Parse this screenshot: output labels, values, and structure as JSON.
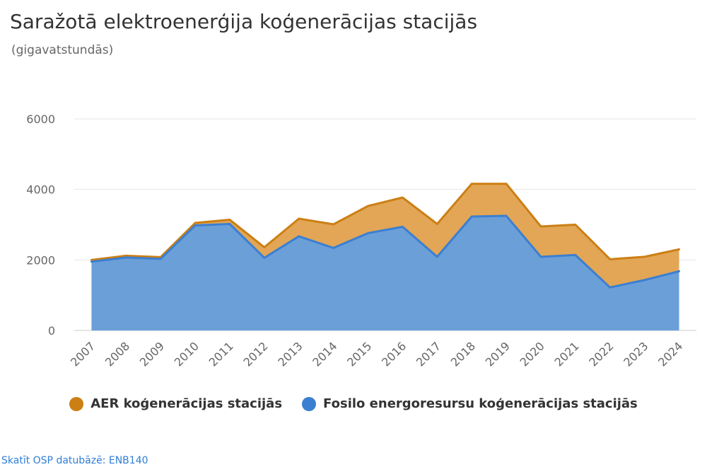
{
  "chart_data": {
    "type": "area",
    "stacked": true,
    "title": "Saražotā elektroenerģija koģenerācijas stacijās",
    "subtitle": "(gigavatstundās)",
    "x": [
      "2007",
      "2008",
      "2009",
      "2010",
      "2011",
      "2012",
      "2013",
      "2014",
      "2015",
      "2016",
      "2017",
      "2018",
      "2019",
      "2020",
      "2021",
      "2022",
      "2023",
      "2024"
    ],
    "series": [
      {
        "name": "Fosilo energoresursu koģenerācijas stacijās",
        "color": "#3b7fd1",
        "fill": "#6b9fd8",
        "values": [
          1950,
          2070,
          2030,
          2980,
          3020,
          2060,
          2670,
          2340,
          2760,
          2940,
          2090,
          3230,
          3250,
          2090,
          2140,
          1220,
          1430,
          1680
        ]
      },
      {
        "name": "AER koģenerācijas stacijās",
        "color": "#cc7f14",
        "fill": "#e2a656",
        "values": [
          50,
          50,
          50,
          70,
          120,
          300,
          500,
          670,
          770,
          830,
          930,
          930,
          910,
          860,
          860,
          800,
          660,
          620
        ]
      }
    ],
    "yticks": [
      0,
      2000,
      4000,
      6000
    ],
    "ylim": [
      0,
      6000
    ],
    "grid": true,
    "legend_position": "bottom"
  },
  "legend": {
    "items": [
      {
        "label": "AER koģenerācijas stacijās",
        "color": "#cc7f14"
      },
      {
        "label": "Fosilo energoresursu koģenerācijas stacijās",
        "color": "#3b7fd1"
      }
    ]
  },
  "footer": {
    "source_link": "Skatīt OSP datubāzē: ENB140"
  }
}
